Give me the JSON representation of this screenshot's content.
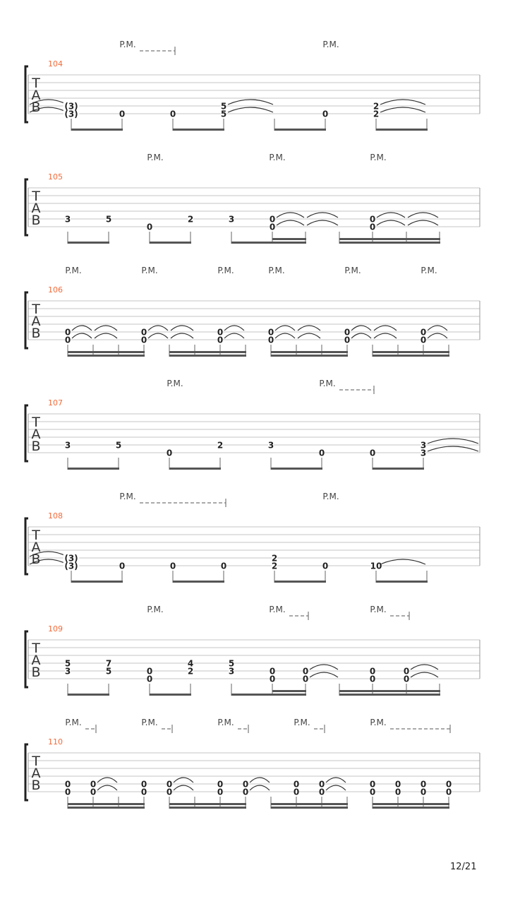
{
  "page_number": "12/21",
  "tab_clef": [
    "T",
    "A",
    "B"
  ],
  "colors": {
    "measure_number": "#f26b3a",
    "ink": "#222222",
    "staff_line": "#c4c4c4",
    "beam": "#555555",
    "palm_mute": "#444444"
  },
  "systems": [
    {
      "measure": "104",
      "palm_mutes": [
        {
          "label": "P.M.",
          "extended": true
        },
        {
          "label": "P.M.",
          "extended": false
        }
      ],
      "events": [
        {
          "duration": 8,
          "tie_in": true,
          "notes": [
            {
              "string": 5,
              "fret": "(3)"
            },
            {
              "string": 6,
              "fret": "(3)"
            }
          ]
        },
        {
          "duration": 8,
          "notes": [
            {
              "string": 6,
              "fret": "0"
            }
          ]
        },
        {
          "duration": 8,
          "notes": [
            {
              "string": 6,
              "fret": "0"
            }
          ]
        },
        {
          "duration": 8,
          "tie": true,
          "notes": [
            {
              "string": 5,
              "fret": "5"
            },
            {
              "string": 6,
              "fret": "5"
            }
          ]
        },
        {
          "duration": 8,
          "notes": []
        },
        {
          "duration": 8,
          "notes": [
            {
              "string": 6,
              "fret": "0"
            }
          ]
        },
        {
          "duration": 8,
          "tie": true,
          "notes": [
            {
              "string": 5,
              "fret": "2"
            },
            {
              "string": 6,
              "fret": "2"
            }
          ]
        },
        {
          "duration": 8,
          "notes": []
        }
      ],
      "beams": [
        [
          0,
          1
        ],
        [
          2,
          3
        ],
        [
          4,
          5
        ],
        [
          6,
          7
        ]
      ]
    },
    {
      "measure": "105",
      "palm_mutes": [
        {
          "label": "P.M.",
          "extended": false
        },
        {
          "label": "P.M.",
          "extended": false
        },
        {
          "label": "P.M.",
          "extended": false
        }
      ],
      "events": [
        {
          "duration": 8,
          "notes": [
            {
              "string": 5,
              "fret": "3"
            }
          ]
        },
        {
          "duration": 8,
          "notes": [
            {
              "string": 5,
              "fret": "5"
            }
          ]
        },
        {
          "duration": 8,
          "notes": [
            {
              "string": 6,
              "fret": "0"
            }
          ]
        },
        {
          "duration": 8,
          "notes": [
            {
              "string": 5,
              "fret": "2"
            }
          ]
        },
        {
          "duration": 8,
          "notes": [
            {
              "string": 5,
              "fret": "3"
            }
          ]
        },
        {
          "duration": 16,
          "tie": true,
          "notes": [
            {
              "string": 5,
              "fret": "0"
            },
            {
              "string": 6,
              "fret": "0"
            }
          ]
        },
        {
          "duration": 16,
          "tie": true,
          "notes": []
        },
        {
          "duration": 16,
          "notes": []
        },
        {
          "duration": 16,
          "tie": true,
          "notes": [
            {
              "string": 5,
              "fret": "0"
            },
            {
              "string": 6,
              "fret": "0"
            }
          ]
        },
        {
          "duration": 16,
          "tie": true,
          "notes": []
        },
        {
          "duration": 16,
          "notes": []
        }
      ],
      "beams": [
        [
          0,
          1
        ],
        [
          2,
          3
        ],
        [
          4,
          5,
          6
        ],
        [
          7,
          8,
          9,
          10
        ]
      ]
    },
    {
      "measure": "106",
      "palm_mutes": [
        {
          "label": "P.M.",
          "extended": false
        },
        {
          "label": "P.M.",
          "extended": false
        },
        {
          "label": "P.M.",
          "extended": false
        },
        {
          "label": "P.M.",
          "extended": false
        },
        {
          "label": "P.M.",
          "extended": false
        },
        {
          "label": "P.M.",
          "extended": false
        }
      ],
      "events": [
        {
          "duration": 16,
          "tie": true,
          "notes": [
            {
              "string": 5,
              "fret": "0"
            },
            {
              "string": 6,
              "fret": "0"
            }
          ]
        },
        {
          "duration": 16,
          "tie": true,
          "notes": []
        },
        {
          "duration": 16,
          "notes": []
        },
        {
          "duration": 16,
          "tie": true,
          "notes": [
            {
              "string": 5,
              "fret": "0"
            },
            {
              "string": 6,
              "fret": "0"
            }
          ]
        },
        {
          "duration": 16,
          "tie": true,
          "notes": []
        },
        {
          "duration": 16,
          "notes": []
        },
        {
          "duration": 16,
          "tie": true,
          "notes": [
            {
              "string": 5,
              "fret": "0"
            },
            {
              "string": 6,
              "fret": "0"
            }
          ]
        },
        {
          "duration": 16,
          "notes": []
        },
        {
          "duration": 16,
          "tie": true,
          "notes": [
            {
              "string": 5,
              "fret": "0"
            },
            {
              "string": 6,
              "fret": "0"
            }
          ]
        },
        {
          "duration": 16,
          "tie": true,
          "notes": []
        },
        {
          "duration": 16,
          "notes": []
        },
        {
          "duration": 16,
          "tie": true,
          "notes": [
            {
              "string": 5,
              "fret": "0"
            },
            {
              "string": 6,
              "fret": "0"
            }
          ]
        },
        {
          "duration": 16,
          "tie": true,
          "notes": []
        },
        {
          "duration": 16,
          "notes": []
        },
        {
          "duration": 16,
          "tie": true,
          "notes": [
            {
              "string": 5,
              "fret": "0"
            },
            {
              "string": 6,
              "fret": "0"
            }
          ]
        },
        {
          "duration": 16,
          "notes": []
        }
      ],
      "beams": [
        [
          0,
          1,
          2,
          3
        ],
        [
          4,
          5,
          6,
          7
        ],
        [
          8,
          9,
          10,
          11
        ],
        [
          12,
          13,
          14,
          15
        ]
      ]
    },
    {
      "measure": "107",
      "palm_mutes": [
        {
          "label": "P.M.",
          "extended": false
        },
        {
          "label": "P.M.",
          "extended": true
        }
      ],
      "events": [
        {
          "duration": 8,
          "notes": [
            {
              "string": 5,
              "fret": "3"
            }
          ]
        },
        {
          "duration": 8,
          "notes": [
            {
              "string": 5,
              "fret": "5"
            }
          ]
        },
        {
          "duration": 8,
          "notes": [
            {
              "string": 6,
              "fret": "0"
            }
          ]
        },
        {
          "duration": 8,
          "notes": [
            {
              "string": 5,
              "fret": "2"
            }
          ]
        },
        {
          "duration": 8,
          "notes": [
            {
              "string": 5,
              "fret": "3"
            }
          ]
        },
        {
          "duration": 8,
          "notes": [
            {
              "string": 6,
              "fret": "0"
            }
          ]
        },
        {
          "duration": 8,
          "notes": [
            {
              "string": 6,
              "fret": "0"
            }
          ]
        },
        {
          "duration": 8,
          "tie_out": true,
          "notes": [
            {
              "string": 5,
              "fret": "3"
            },
            {
              "string": 6,
              "fret": "3"
            }
          ]
        }
      ],
      "beams": [
        [
          0,
          1
        ],
        [
          2,
          3
        ],
        [
          4,
          5
        ],
        [
          6,
          7
        ]
      ]
    },
    {
      "measure": "108",
      "palm_mutes": [
        {
          "label": "P.M.",
          "extended": true
        },
        {
          "label": "P.M.",
          "extended": false
        }
      ],
      "events": [
        {
          "duration": 8,
          "tie_in": true,
          "notes": [
            {
              "string": 5,
              "fret": "(3)"
            },
            {
              "string": 6,
              "fret": "(3)"
            }
          ]
        },
        {
          "duration": 8,
          "notes": [
            {
              "string": 6,
              "fret": "0"
            }
          ]
        },
        {
          "duration": 8,
          "notes": [
            {
              "string": 6,
              "fret": "0"
            }
          ]
        },
        {
          "duration": 8,
          "notes": [
            {
              "string": 6,
              "fret": "0"
            }
          ]
        },
        {
          "duration": 8,
          "notes": [
            {
              "string": 5,
              "fret": "2"
            },
            {
              "string": 6,
              "fret": "2"
            }
          ]
        },
        {
          "duration": 8,
          "notes": [
            {
              "string": 6,
              "fret": "0"
            }
          ]
        },
        {
          "duration": 8,
          "tie": true,
          "notes": [
            {
              "string": 6,
              "fret": "10"
            }
          ]
        },
        {
          "duration": 8,
          "notes": []
        }
      ],
      "beams": [
        [
          0,
          1
        ],
        [
          2,
          3
        ],
        [
          4,
          5
        ],
        [
          6,
          7
        ]
      ]
    },
    {
      "measure": "109",
      "palm_mutes": [
        {
          "label": "P.M.",
          "extended": false
        },
        {
          "label": "P.M.",
          "extended": true
        },
        {
          "label": "P.M.",
          "extended": true
        }
      ],
      "events": [
        {
          "duration": 8,
          "notes": [
            {
              "string": 4,
              "fret": "5"
            },
            {
              "string": 5,
              "fret": "3"
            }
          ]
        },
        {
          "duration": 8,
          "notes": [
            {
              "string": 4,
              "fret": "7"
            },
            {
              "string": 5,
              "fret": "5"
            }
          ]
        },
        {
          "duration": 8,
          "notes": [
            {
              "string": 5,
              "fret": "0"
            },
            {
              "string": 6,
              "fret": "0"
            }
          ]
        },
        {
          "duration": 8,
          "notes": [
            {
              "string": 4,
              "fret": "4"
            },
            {
              "string": 5,
              "fret": "2"
            }
          ]
        },
        {
          "duration": 8,
          "notes": [
            {
              "string": 4,
              "fret": "5"
            },
            {
              "string": 5,
              "fret": "3"
            }
          ]
        },
        {
          "duration": 16,
          "notes": [
            {
              "string": 5,
              "fret": "0"
            },
            {
              "string": 6,
              "fret": "0"
            }
          ]
        },
        {
          "duration": 16,
          "tie": true,
          "notes": [
            {
              "string": 5,
              "fret": "0"
            },
            {
              "string": 6,
              "fret": "0"
            }
          ]
        },
        {
          "duration": 16,
          "notes": []
        },
        {
          "duration": 16,
          "notes": [
            {
              "string": 5,
              "fret": "0"
            },
            {
              "string": 6,
              "fret": "0"
            }
          ]
        },
        {
          "duration": 16,
          "tie": true,
          "notes": [
            {
              "string": 5,
              "fret": "0"
            },
            {
              "string": 6,
              "fret": "0"
            }
          ]
        },
        {
          "duration": 16,
          "notes": []
        }
      ],
      "beams": [
        [
          0,
          1
        ],
        [
          2,
          3
        ],
        [
          4,
          5,
          6
        ],
        [
          7,
          8,
          9,
          10
        ]
      ]
    },
    {
      "measure": "110",
      "palm_mutes": [
        {
          "label": "P.M.",
          "extended": true
        },
        {
          "label": "P.M.",
          "extended": true
        },
        {
          "label": "P.M.",
          "extended": true
        },
        {
          "label": "P.M.",
          "extended": true
        },
        {
          "label": "P.M.",
          "extended": true
        }
      ],
      "events": [
        {
          "duration": 16,
          "notes": [
            {
              "string": 5,
              "fret": "0"
            },
            {
              "string": 6,
              "fret": "0"
            }
          ]
        },
        {
          "duration": 16,
          "tie": true,
          "notes": [
            {
              "string": 5,
              "fret": "0"
            },
            {
              "string": 6,
              "fret": "0"
            }
          ]
        },
        {
          "duration": 16,
          "notes": []
        },
        {
          "duration": 16,
          "notes": [
            {
              "string": 5,
              "fret": "0"
            },
            {
              "string": 6,
              "fret": "0"
            }
          ]
        },
        {
          "duration": 16,
          "tie": true,
          "notes": [
            {
              "string": 5,
              "fret": "0"
            },
            {
              "string": 6,
              "fret": "0"
            }
          ]
        },
        {
          "duration": 16,
          "notes": []
        },
        {
          "duration": 16,
          "notes": [
            {
              "string": 5,
              "fret": "0"
            },
            {
              "string": 6,
              "fret": "0"
            }
          ]
        },
        {
          "duration": 16,
          "tie": true,
          "notes": [
            {
              "string": 5,
              "fret": "0"
            },
            {
              "string": 6,
              "fret": "0"
            }
          ]
        },
        {
          "duration": 16,
          "notes": []
        },
        {
          "duration": 16,
          "notes": [
            {
              "string": 5,
              "fret": "0"
            },
            {
              "string": 6,
              "fret": "0"
            }
          ]
        },
        {
          "duration": 16,
          "tie": true,
          "notes": [
            {
              "string": 5,
              "fret": "0"
            },
            {
              "string": 6,
              "fret": "0"
            }
          ]
        },
        {
          "duration": 16,
          "notes": []
        },
        {
          "duration": 16,
          "notes": [
            {
              "string": 5,
              "fret": "0"
            },
            {
              "string": 6,
              "fret": "0"
            }
          ]
        },
        {
          "duration": 16,
          "notes": [
            {
              "string": 5,
              "fret": "0"
            },
            {
              "string": 6,
              "fret": "0"
            }
          ]
        },
        {
          "duration": 16,
          "notes": [
            {
              "string": 5,
              "fret": "0"
            },
            {
              "string": 6,
              "fret": "0"
            }
          ]
        },
        {
          "duration": 16,
          "notes": [
            {
              "string": 5,
              "fret": "0"
            },
            {
              "string": 6,
              "fret": "0"
            }
          ]
        }
      ],
      "beams": [
        [
          0,
          1,
          2,
          3
        ],
        [
          4,
          5,
          6,
          7
        ],
        [
          8,
          9,
          10,
          11
        ],
        [
          12,
          13,
          14,
          15
        ]
      ]
    }
  ]
}
